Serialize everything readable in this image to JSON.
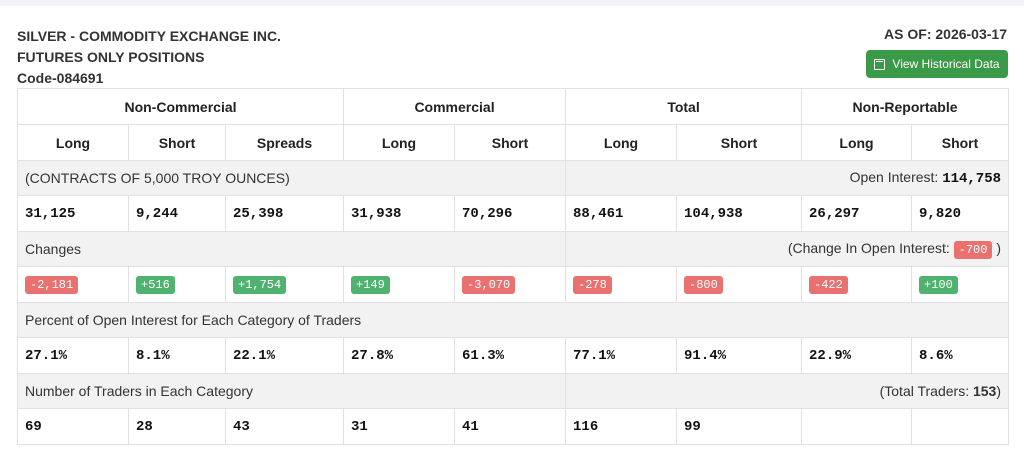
{
  "header": {
    "line1": "SILVER - COMMODITY EXCHANGE INC.",
    "line2": "FUTURES ONLY POSITIONS",
    "code": "Code-084691",
    "as_of": "AS OF: 2026-03-17",
    "history_button": "View Historical Data"
  },
  "groups": [
    "Non-Commercial",
    "Commercial",
    "Total",
    "Non-Reportable"
  ],
  "columns": [
    "Long",
    "Short",
    "Spreads",
    "Long",
    "Short",
    "Long",
    "Short",
    "Long",
    "Short"
  ],
  "contracts": {
    "label": "(CONTRACTS OF 5,000 TROY OUNCES)",
    "oi_label": "Open Interest: ",
    "oi_value": "114,758"
  },
  "positions": [
    "31,125",
    "9,244",
    "25,398",
    "31,938",
    "70,296",
    "88,461",
    "104,938",
    "26,297",
    "9,820"
  ],
  "changes": {
    "label": "Changes",
    "oi_prefix": "(Change In Open Interest: ",
    "oi_value": "-700",
    "oi_suffix": " )",
    "values": [
      "-2,181",
      "+516",
      "+1,754",
      "+149",
      "-3,070",
      "-278",
      "-800",
      "-422",
      "+100"
    ]
  },
  "percent": {
    "label": "Percent of Open Interest for Each Category of Traders",
    "values": [
      "27.1%",
      "8.1%",
      "22.1%",
      "27.8%",
      "61.3%",
      "77.1%",
      "91.4%",
      "22.9%",
      "8.6%"
    ]
  },
  "traders": {
    "label": "Number of Traders in Each Category",
    "total_prefix": "(Total Traders: ",
    "total_value": "153",
    "total_suffix": ")",
    "values": [
      "69",
      "28",
      "43",
      "31",
      "41",
      "116",
      "99",
      "",
      ""
    ]
  },
  "colors": {
    "negative": "#e9716f",
    "positive": "#4fb26e",
    "button": "#3a9a48"
  }
}
